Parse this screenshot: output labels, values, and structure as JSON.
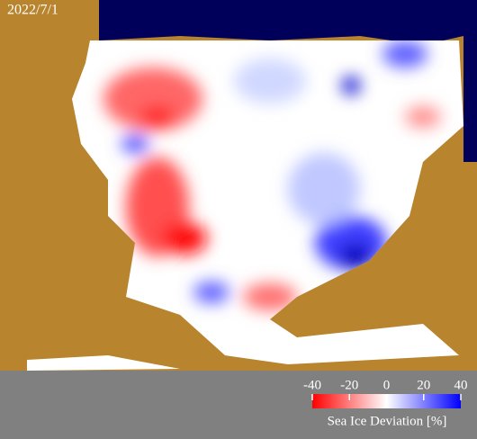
{
  "date": "2022/7/1",
  "colorbar": {
    "label": "Sea Ice Deviation [%]",
    "range": [
      -40,
      40
    ],
    "ticks": [
      -40,
      -20,
      0,
      20,
      40
    ]
  }
}
